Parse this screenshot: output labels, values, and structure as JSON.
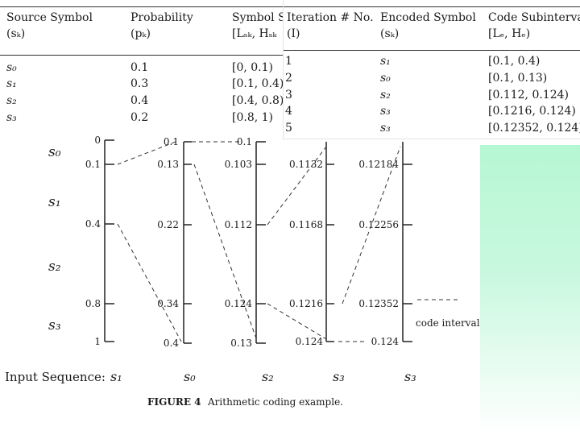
{
  "table1": {
    "headers": [
      [
        "Source Symbol",
        "(sₖ)"
      ],
      [
        "Probability",
        "(pₖ)"
      ],
      [
        "Symbol S",
        "[Lₛₖ, Hₛₖ"
      ]
    ],
    "rows": [
      [
        "s₀",
        "0.1",
        "[0, 0.1)"
      ],
      [
        "s₁",
        "0.3",
        "[0.1, 0.4)"
      ],
      [
        "s₂",
        "0.4",
        "[0.4, 0.8)"
      ],
      [
        "s₃",
        "0.2",
        "[0.8, 1)"
      ]
    ]
  },
  "table2": {
    "headers": [
      [
        "Iteration # No.",
        "(I)"
      ],
      [
        "Encoded Symbol",
        "(sₖ)"
      ],
      [
        "Code Subinterval",
        "[Lₑ, Hₑ)"
      ]
    ],
    "rows": [
      [
        "1",
        "s₁",
        "[0.1, 0.4)"
      ],
      [
        "2",
        "s₀",
        "[0.1, 0.13)"
      ],
      [
        "3",
        "s₂",
        "[0.112, 0.124)"
      ],
      [
        "4",
        "s₃",
        "[0.1216, 0.124)"
      ],
      [
        "5",
        "s₃",
        "[0.12352, 0.124)"
      ]
    ]
  },
  "figure": {
    "symbol_labels": [
      "s₀",
      "s₁",
      "s₂",
      "s₃"
    ],
    "bars": [
      {
        "ticks": [
          "0",
          "0.1",
          "0.4",
          "0.8",
          "1"
        ]
      },
      {
        "ticks": [
          "0.1",
          "0.13",
          "0.22",
          "0.34",
          "0.4"
        ]
      },
      {
        "ticks": [
          "0.1",
          "0.103",
          "0.112",
          "0.124",
          "0.13"
        ]
      },
      {
        "ticks": [
          "0.1132",
          "0.1168",
          "0.1216",
          "0.124"
        ]
      },
      {
        "ticks": [
          "0.12184",
          "0.12256",
          "0.12352",
          "0.124"
        ]
      }
    ],
    "code_interval_label": "code interval",
    "input_label": "Input Sequence:",
    "input_symbols": [
      "s₁",
      "s₀",
      "s₂",
      "s₃",
      "s₃"
    ],
    "caption_label": "FIGURE 4",
    "caption_text": "Arithmetic coding example."
  }
}
